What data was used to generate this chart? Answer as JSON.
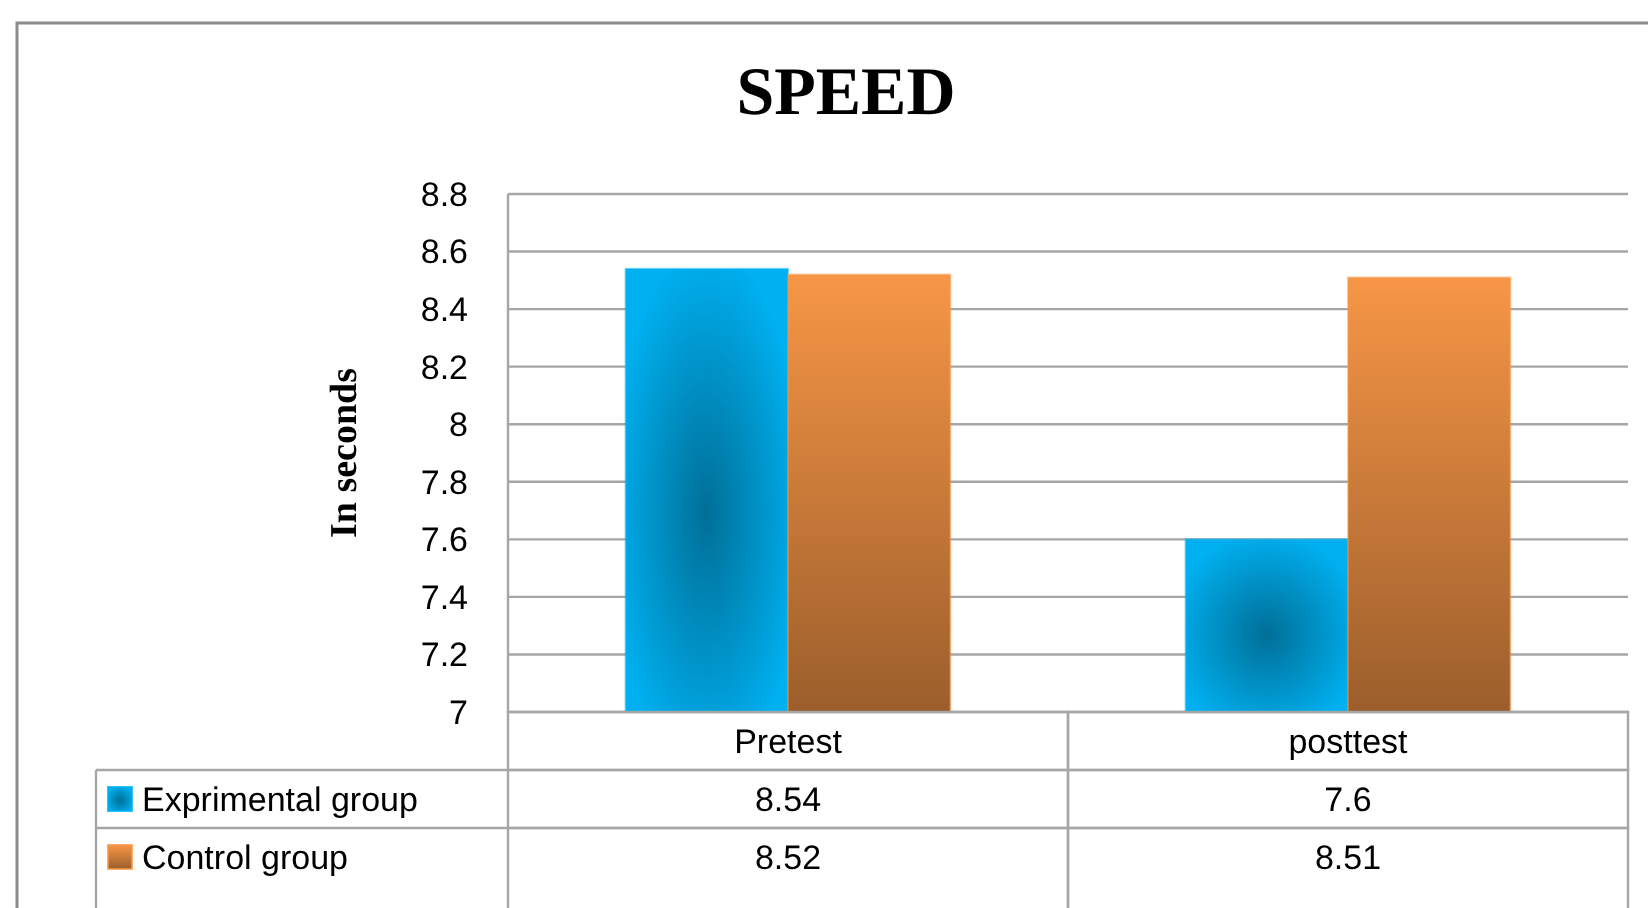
{
  "chart_data": {
    "type": "bar",
    "title": "SPEED",
    "ylabel": "In seconds",
    "categories": [
      "Pretest",
      "posttest"
    ],
    "series": [
      {
        "name": "Exprimental group",
        "color": "#00b0f0",
        "values": [
          8.54,
          7.6
        ]
      },
      {
        "name": "Control group",
        "color": "#f79646",
        "values": [
          8.52,
          8.51
        ]
      }
    ],
    "ylim": [
      7,
      8.8
    ],
    "yticks": [
      7,
      7.2,
      7.4,
      7.6,
      7.8,
      8,
      8.2,
      8.4,
      8.6,
      8.8
    ],
    "grid": "y",
    "legend": "bottom",
    "data_labels": true
  }
}
